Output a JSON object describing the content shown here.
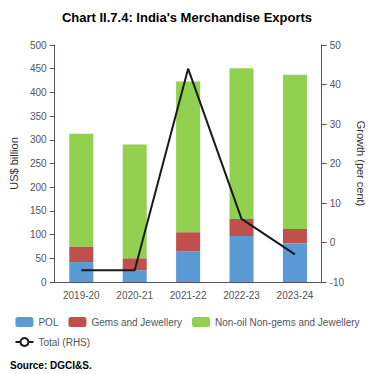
{
  "chart_data": {
    "type": "bar",
    "title": "Chart II.7.4: India's Merchandise Exports",
    "categories": [
      "2019-20",
      "2020-21",
      "2021-22",
      "2022-23",
      "2023-24"
    ],
    "series": [
      {
        "name": "POL",
        "type": "bar",
        "color": "#5b9bd5",
        "values": [
          42,
          25,
          65,
          97,
          82
        ]
      },
      {
        "name": "Gems and Jewellery",
        "type": "bar",
        "color": "#c0504d",
        "values": [
          33,
          25,
          40,
          36,
          30
        ]
      },
      {
        "name": "Non-oil Non-gems and Jewellery",
        "type": "bar",
        "color": "#92d050",
        "values": [
          238,
          240,
          318,
          318,
          325
        ]
      },
      {
        "name": "Total (RHS)",
        "type": "line",
        "axis": "y2",
        "color": "#1a1a1a",
        "line_style": "solid",
        "values": [
          -7,
          -7,
          44,
          6,
          -3
        ]
      }
    ],
    "stacked": true,
    "ylabel": "US$ billion",
    "y2label": "Growth (per cent)",
    "ylim": [
      0,
      500
    ],
    "yticks": [
      0,
      50,
      100,
      150,
      200,
      250,
      300,
      350,
      400,
      450,
      500
    ],
    "y2lim": [
      -10,
      50
    ],
    "y2ticks": [
      -10,
      0,
      10,
      20,
      30,
      40,
      50
    ],
    "grid": false,
    "legend": "bottom",
    "annotations": [
      "Source: DGCI&S."
    ]
  }
}
